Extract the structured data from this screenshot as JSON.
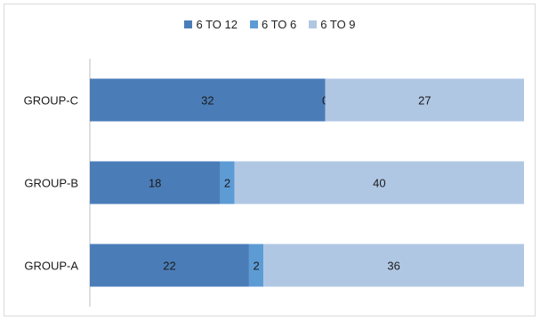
{
  "chart_data": {
    "type": "bar",
    "orientation": "horizontal",
    "stacking": "percent",
    "categories": [
      "GROUP-A",
      "GROUP-B",
      "GROUP-C"
    ],
    "series": [
      {
        "name": "6 TO 12",
        "color": "#4a7db8",
        "values": [
          22,
          18,
          32
        ]
      },
      {
        "name": "6 TO 6",
        "color": "#5d9bd5",
        "values": [
          2,
          2,
          0
        ]
      },
      {
        "name": "6 TO 9",
        "color": "#b0c7e4",
        "values": [
          36,
          40,
          27
        ]
      }
    ],
    "title": "",
    "xlabel": "",
    "ylabel": "",
    "legend_position": "top",
    "grid": false
  }
}
